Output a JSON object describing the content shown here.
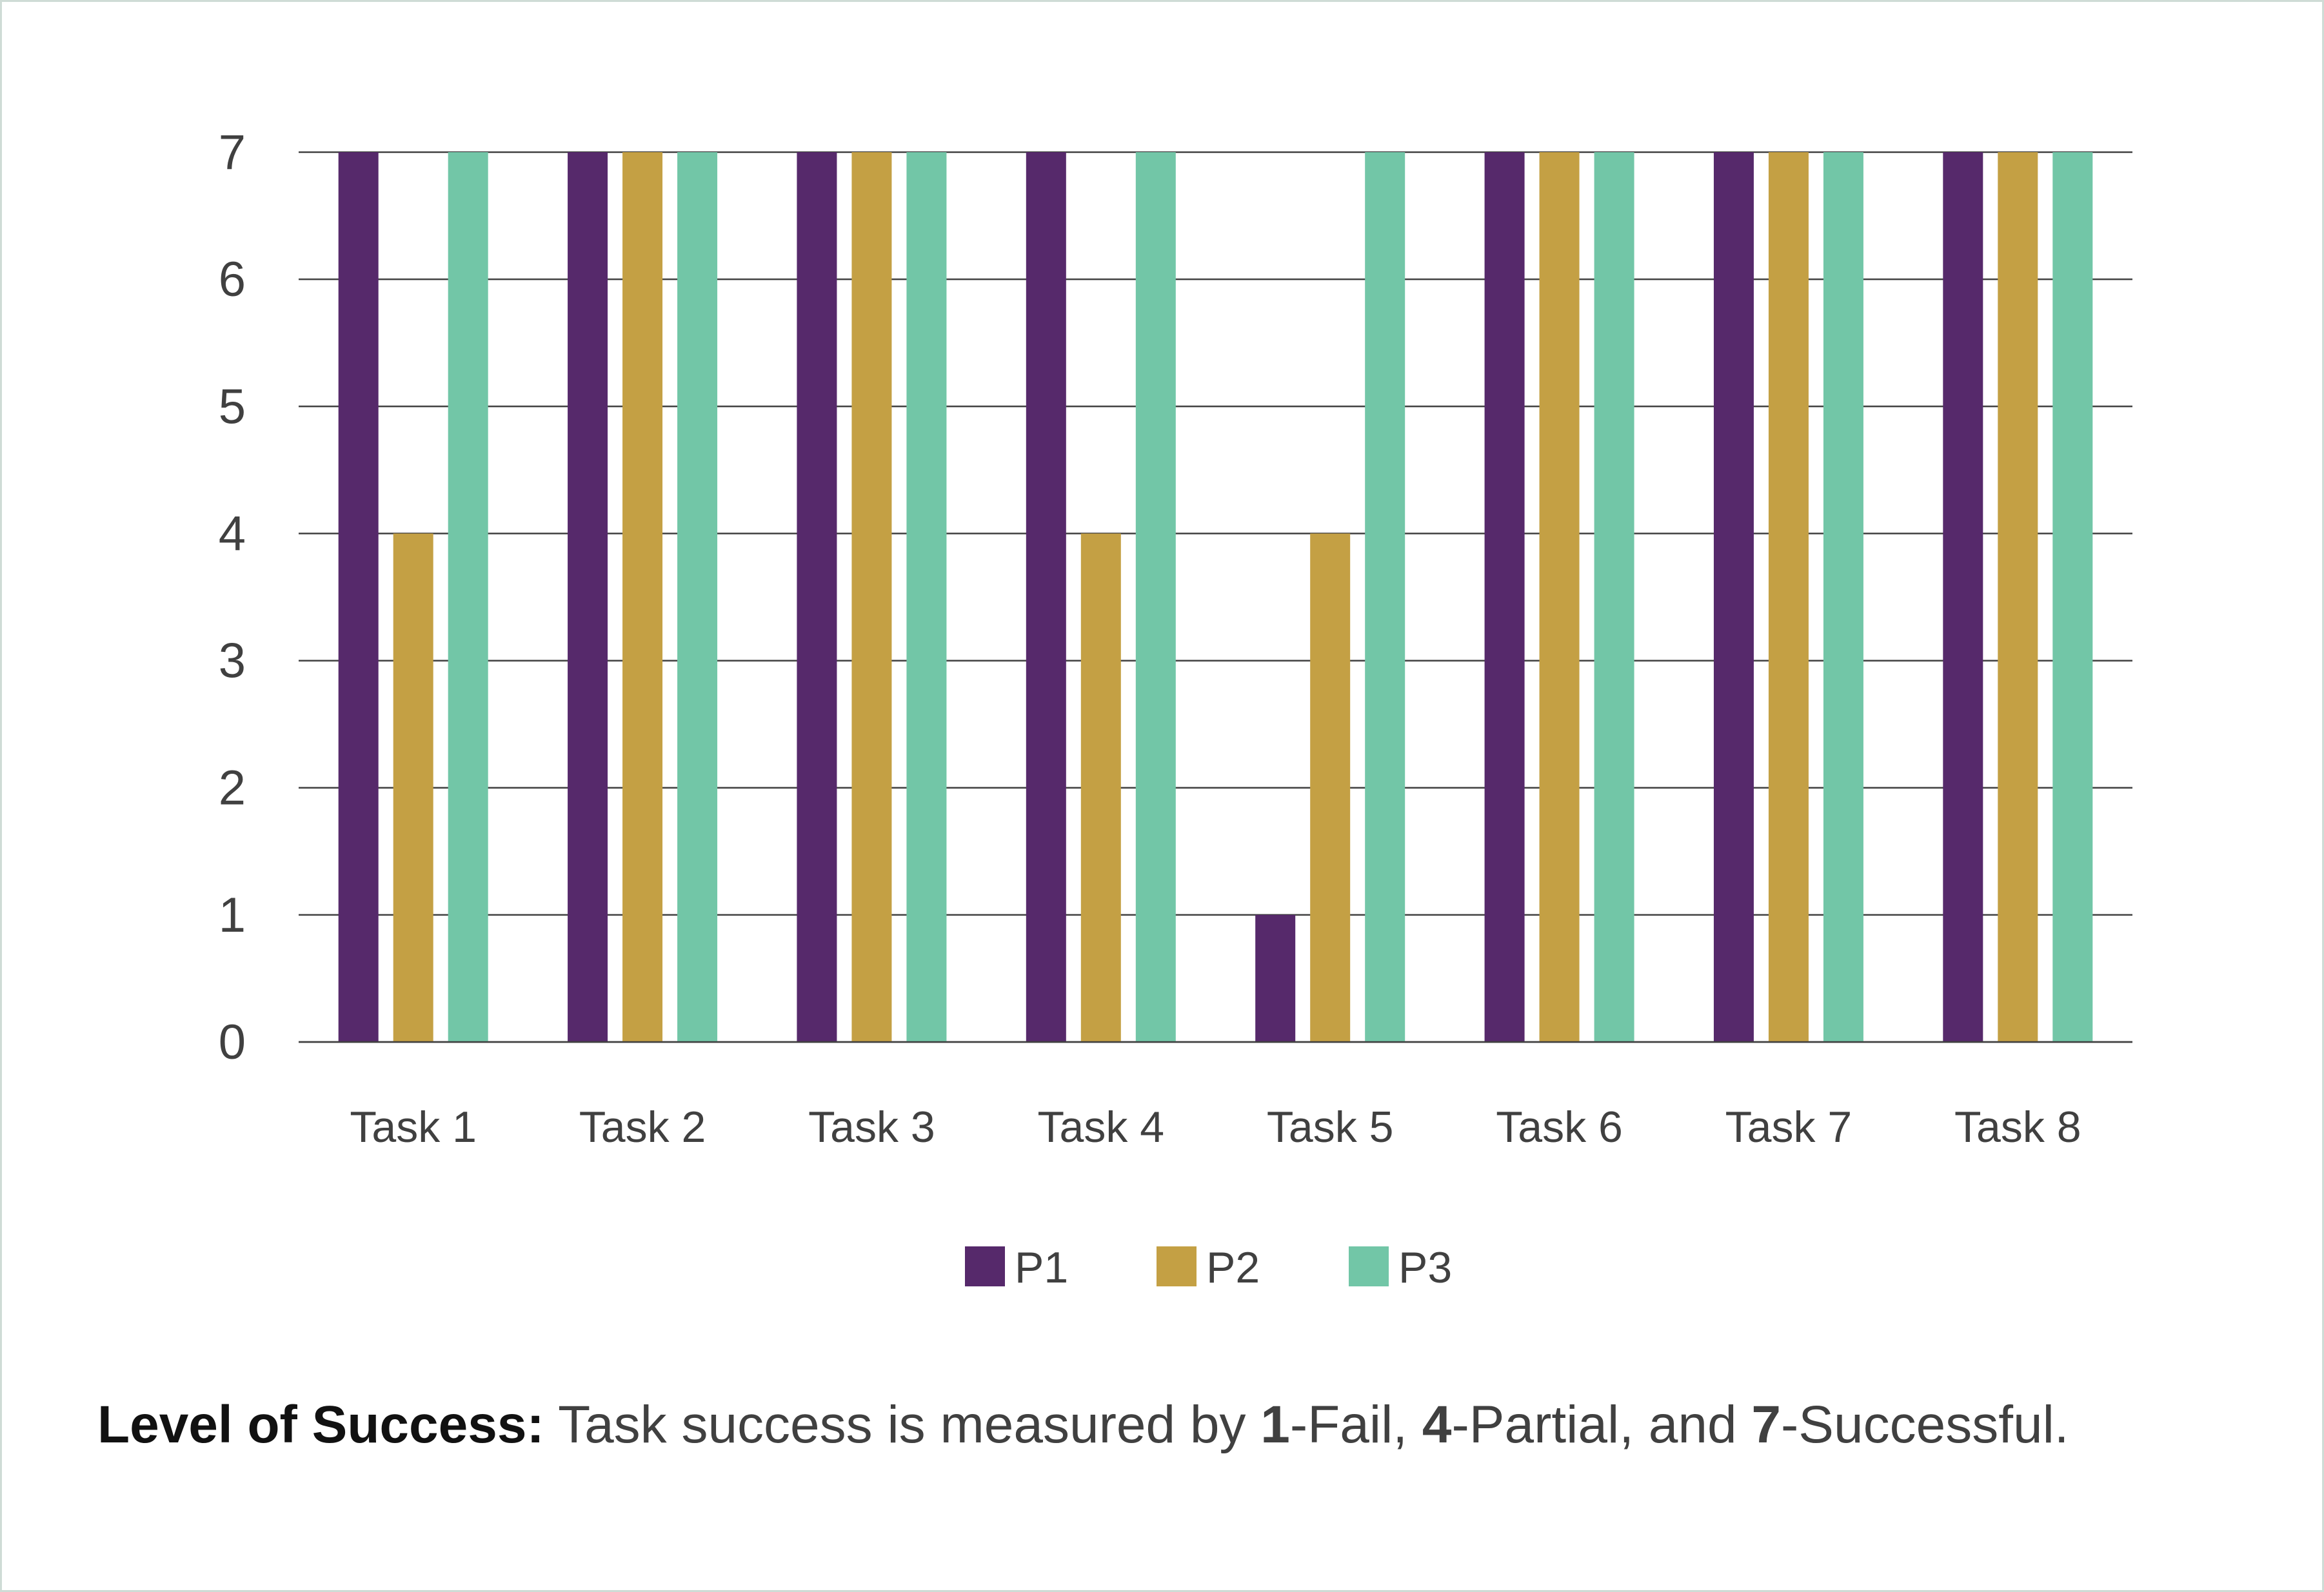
{
  "chart_data": {
    "type": "bar",
    "title": "",
    "xlabel": "",
    "ylabel": "",
    "ylim": [
      0,
      7
    ],
    "yticks": [
      0,
      1,
      2,
      3,
      4,
      5,
      6,
      7
    ],
    "grid": true,
    "legend_position": "bottom-center",
    "categories": [
      "Task 1",
      "Task 2",
      "Task 3",
      "Task 4",
      "Task 5",
      "Task 6",
      "Task 7",
      "Task 8"
    ],
    "series": [
      {
        "name": "P1",
        "color": "#56296b",
        "values": [
          7,
          7,
          7,
          7,
          1,
          7,
          7,
          7
        ]
      },
      {
        "name": "P2",
        "color": "#c4a044",
        "values": [
          4,
          7,
          7,
          4,
          4,
          7,
          7,
          7
        ]
      },
      {
        "name": "P3",
        "color": "#72c6a7",
        "values": [
          7,
          7,
          7,
          7,
          7,
          7,
          7,
          7
        ]
      }
    ]
  },
  "caption": {
    "heading": "Level of Success:",
    "text_1": " Task success is measured by ",
    "num_1": "1",
    "text_2": "-Fail, ",
    "num_2": "4",
    "text_3": "-Partial, and ",
    "num_3": "7",
    "text_4": "-Successful."
  },
  "colors": {
    "gridline": "#404040",
    "text": "#404040",
    "border": "#cfdcd6"
  }
}
